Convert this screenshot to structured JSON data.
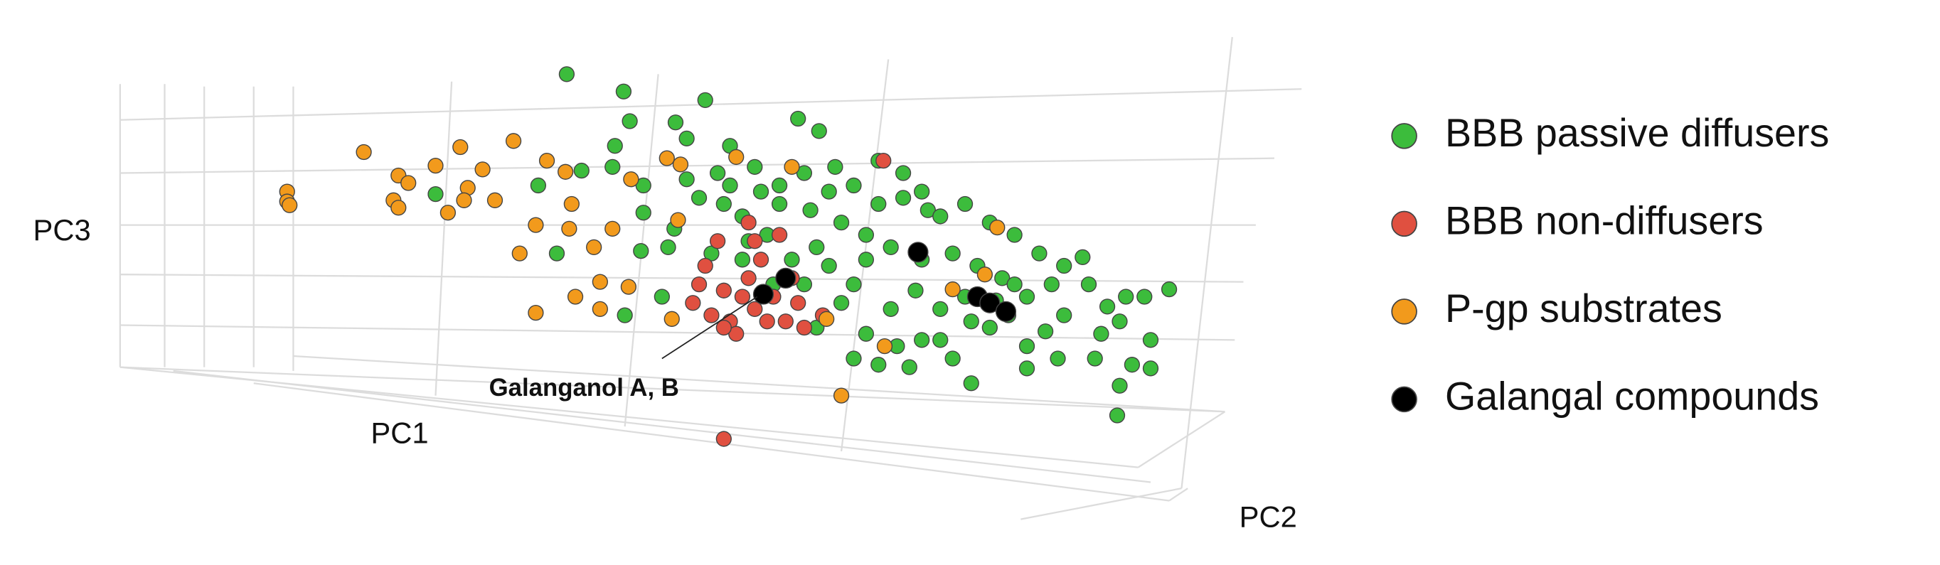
{
  "chart_data": {
    "type": "scatter",
    "x_label": "PC1",
    "y_label": "PC3",
    "z_label": "PC2",
    "annotation": "Galanganol A, B",
    "series": [
      {
        "name": "BBB passive diffusers",
        "color": "#3cbc3c",
        "x": [
          458,
          504,
          570,
          509,
          546,
          645,
          662,
          497,
          555,
          590,
          470,
          435,
          352,
          495,
          520,
          555,
          580,
          610,
          630,
          650,
          670,
          690,
          710,
          730,
          750,
          760,
          780,
          800,
          820,
          840,
          860,
          875,
          850,
          830,
          810,
          790,
          770,
          745,
          720,
          700,
          680,
          660,
          640,
          620,
          600,
          585,
          565,
          545,
          520,
          540,
          600,
          650,
          690,
          720,
          700,
          690,
          710,
          735,
          760,
          785,
          770,
          800,
          830,
          855,
          830,
          785,
          880,
          895,
          910,
          925,
          945,
          890,
          905,
          930,
          915,
          905,
          903,
          930,
          885,
          630,
          615,
          590,
          710,
          730,
          745,
          675,
          655,
          605,
          740,
          760,
          805,
          815,
          680,
          660,
          700,
          670,
          625,
          575,
          505,
          535,
          518,
          450,
          780,
          820,
          860,
          845,
          745,
          725
        ],
        "y": [
          60,
          74,
          81,
          98,
          99,
          96,
          106,
          118,
          112,
          118,
          138,
          150,
          157,
          135,
          150,
          145,
          140,
          135,
          150,
          140,
          155,
          150,
          165,
          160,
          170,
          175,
          165,
          180,
          190,
          205,
          215,
          208,
          230,
          240,
          225,
          215,
          205,
          210,
          200,
          190,
          180,
          200,
          210,
          190,
          175,
          165,
          160,
          185,
          172,
          200,
          210,
          230,
          230,
          250,
          270,
          290,
          295,
          297,
          275,
          260,
          290,
          265,
          280,
          290,
          298,
          310,
          230,
          248,
          240,
          240,
          234,
          270,
          260,
          275,
          295,
          312,
          336,
          298,
          290,
          165,
          155,
          150,
          130,
          140,
          155,
          135,
          170,
          195,
          235,
          250,
          243,
          255,
          245,
          265,
          210,
          215,
          230,
          205,
          255,
          240,
          203,
          205,
          240,
          230,
          255,
          268,
          275,
          280
        ]
      },
      {
        "name": "BBB non-diffusers",
        "color": "#e05040",
        "x": [
          714,
          605,
          580,
          570,
          585,
          565,
          560,
          575,
          590,
          600,
          610,
          620,
          635,
          605,
          625,
          645,
          650,
          595,
          585,
          615,
          630,
          610,
          640,
          585,
          665
        ],
        "y": [
          130,
          180,
          195,
          215,
          235,
          230,
          245,
          255,
          260,
          240,
          250,
          260,
          260,
          225,
          240,
          245,
          265,
          270,
          265,
          210,
          190,
          195,
          225,
          355,
          255
        ]
      },
      {
        "name": "P-gp substrates",
        "color": "#f29a1c",
        "x": [
          232,
          232,
          234,
          294,
          322,
          330,
          352,
          372,
          390,
          415,
          442,
          457,
          378,
          375,
          362,
          400,
          318,
          322,
          433,
          420,
          462,
          460,
          495,
          510,
          480,
          465,
          485,
          508,
          433,
          485,
          543,
          539,
          550,
          595,
          640,
          806,
          796,
          770,
          668,
          680,
          715,
          548
        ],
        "y": [
          155,
          163,
          166,
          123,
          142,
          148,
          134,
          119,
          137,
          114,
          130,
          139,
          152,
          162,
          172,
          162,
          162,
          168,
          182,
          205,
          165,
          185,
          185,
          145,
          200,
          240,
          228,
          232,
          253,
          250,
          258,
          128,
          133,
          127,
          135,
          184,
          222,
          234,
          258,
          320,
          280,
          178
        ]
      },
      {
        "name": "Galangal compounds",
        "color": "#000000",
        "x": [
          742,
          635,
          617,
          790,
          800,
          813
        ],
        "y": [
          204,
          225,
          238,
          240,
          245,
          252
        ]
      }
    ]
  }
}
